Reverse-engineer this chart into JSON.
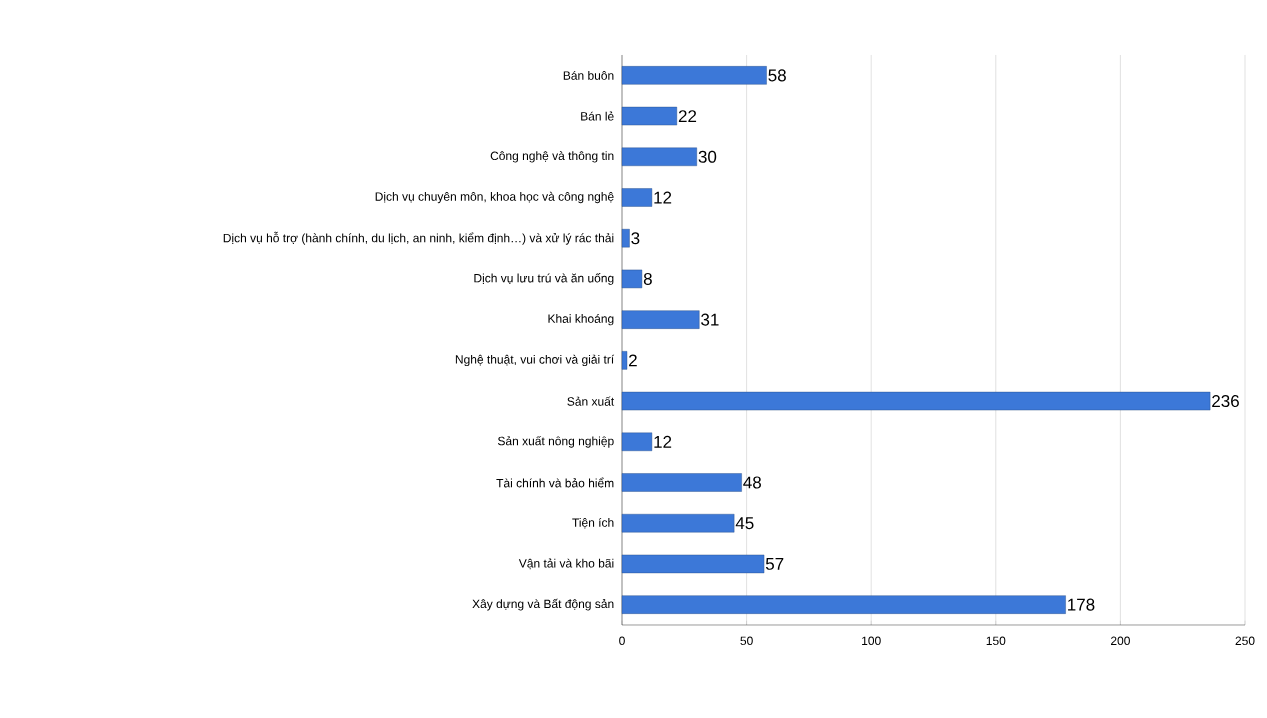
{
  "chart_data": {
    "type": "bar",
    "orientation": "horizontal",
    "categories": [
      "Bán buôn",
      "Bán lẻ",
      "Công nghệ và thông tin",
      "Dịch vụ chuyên môn, khoa học và công nghệ",
      "Dịch vụ hỗ trợ (hành chính, du lịch, an ninh, kiểm định…) và xử lý rác thải",
      "Dịch vụ lưu trú và ăn uống",
      "Khai khoáng",
      "Nghệ thuật, vui chơi và giải trí",
      "Sản xuất",
      "Sản xuất nông nghiệp",
      "Tài chính và bảo hiểm",
      "Tiện ích",
      "Vận tải và kho bãi",
      "Xây dựng và Bất động sản"
    ],
    "values": [
      58,
      22,
      30,
      12,
      3,
      8,
      31,
      2,
      236,
      12,
      48,
      45,
      57,
      178
    ],
    "color": "#3c78d8",
    "xlim": [
      0,
      250
    ],
    "xticks": [
      0,
      50,
      100,
      150,
      200,
      250
    ],
    "grid": "x",
    "data_labels": true
  }
}
